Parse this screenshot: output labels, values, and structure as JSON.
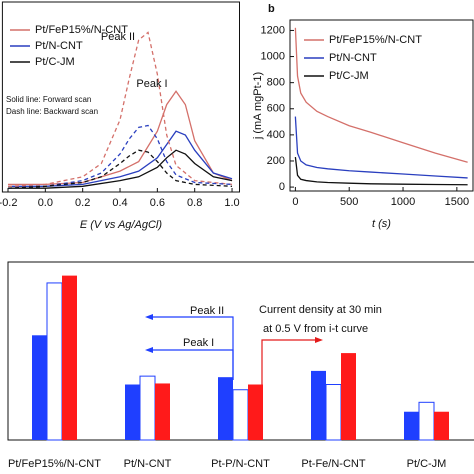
{
  "chart_data": [
    {
      "type": "line",
      "xlabel": "E (V vs Ag/AgCl)",
      "annotations": [
        "Peak II",
        "Peak I"
      ],
      "notes": [
        "Solid line: Forward scan",
        "Dash line: Backward scan"
      ],
      "xlim": [
        -0.23,
        1.04
      ],
      "ylim": [
        0,
        100
      ],
      "xticks": [
        -0.2,
        {
          "value": 0,
          "label": "0.0"
        },
        0.2,
        0.4,
        0.6,
        0.8,
        {
          "value": 1,
          "label": "1.0"
        }
      ],
      "series": [
        {
          "name": "Pt/FeP15%/N-CNT",
          "color": "#d4706a",
          "dash": false,
          "x": [
            -0.2,
            0,
            0.2,
            0.4,
            0.5,
            0.6,
            0.65,
            0.7,
            0.75,
            0.8,
            0.9,
            1.0
          ],
          "values": [
            4,
            4,
            5,
            11,
            16,
            32,
            46,
            53,
            46,
            27,
            10,
            6
          ]
        },
        {
          "name": "Pt/N-CNT",
          "color": "#2a3fbf",
          "dash": false,
          "x": [
            -0.2,
            0,
            0.2,
            0.4,
            0.5,
            0.6,
            0.65,
            0.7,
            0.75,
            0.8,
            0.9,
            1.0
          ],
          "values": [
            3,
            3,
            4,
            8,
            11,
            18,
            25,
            32,
            30,
            22,
            10,
            7
          ]
        },
        {
          "name": "Pt/C-JM",
          "color": "#111111",
          "dash": false,
          "x": [
            -0.2,
            0,
            0.2,
            0.4,
            0.5,
            0.6,
            0.65,
            0.7,
            0.75,
            0.8,
            0.9,
            1.0
          ],
          "values": [
            2,
            2,
            3,
            6,
            8,
            13,
            18,
            22,
            20,
            15,
            8,
            6
          ]
        },
        {
          "color": "#d4706a",
          "dash": true,
          "x": [
            -0.2,
            0,
            0.2,
            0.3,
            0.4,
            0.45,
            0.5,
            0.55,
            0.6,
            0.65,
            0.7,
            0.8,
            1.0
          ],
          "values": [
            3,
            4,
            8,
            15,
            38,
            60,
            80,
            84,
            62,
            30,
            14,
            6,
            4
          ]
        },
        {
          "color": "#2a3fbf",
          "dash": true,
          "x": [
            -0.2,
            0,
            0.2,
            0.3,
            0.4,
            0.45,
            0.5,
            0.55,
            0.6,
            0.65,
            0.7,
            0.8,
            1.0
          ],
          "values": [
            2,
            3,
            6,
            10,
            20,
            28,
            34,
            35,
            28,
            16,
            9,
            5,
            4
          ]
        },
        {
          "color": "#111111",
          "dash": true,
          "x": [
            -0.2,
            0,
            0.2,
            0.3,
            0.4,
            0.45,
            0.5,
            0.55,
            0.6,
            0.65,
            0.7,
            0.8,
            1.0
          ],
          "values": [
            2,
            3,
            5,
            8,
            15,
            19,
            22,
            21,
            16,
            10,
            6,
            4,
            3
          ]
        }
      ]
    },
    {
      "type": "line",
      "panel": "b",
      "xlabel": "t (s)",
      "ylabel": "j (mA mgPt-1)",
      "xlim": [
        -50,
        1650
      ],
      "ylim": [
        -30,
        1280
      ],
      "xticks": [
        0,
        500,
        1000,
        1500
      ],
      "yticks": [
        0,
        200,
        400,
        600,
        800,
        1000,
        1200
      ],
      "series": [
        {
          "name": "Pt/FeP15%/N-CNT",
          "color": "#d4706a",
          "dash": false,
          "x": [
            0,
            20,
            50,
            100,
            200,
            300,
            500,
            700,
            1000,
            1300,
            1600
          ],
          "values": [
            1220,
            850,
            720,
            650,
            580,
            540,
            470,
            420,
            340,
            260,
            190
          ]
        },
        {
          "name": "Pt/N-CNT",
          "color": "#2a3fbf",
          "dash": false,
          "x": [
            0,
            20,
            50,
            100,
            200,
            300,
            500,
            700,
            1000,
            1300,
            1600
          ],
          "values": [
            540,
            260,
            200,
            170,
            150,
            140,
            125,
            115,
            100,
            85,
            70
          ]
        },
        {
          "name": "Pt/C-JM",
          "color": "#111111",
          "dash": false,
          "x": [
            0,
            20,
            50,
            100,
            200,
            300,
            500,
            700,
            1000,
            1300,
            1600
          ],
          "values": [
            230,
            90,
            60,
            50,
            40,
            35,
            30,
            25,
            22,
            20,
            18
          ]
        }
      ]
    },
    {
      "type": "bar",
      "annotations": [
        "Peak II",
        "Peak I",
        "Current density at 30 min",
        "at 0.5 V from i-t curve"
      ],
      "categories": [
        "Pt/FeP15%/N-CNT",
        "Pt/N-CNT",
        "Pt-P/N-CNT",
        "Pt-Fe/N-CNT",
        "Pt/C-JM"
      ],
      "ylim": [
        0,
        170
      ],
      "series": [
        {
          "color": "#1f3fff",
          "values": [
            100,
            53,
            60,
            66,
            27
          ]
        },
        {
          "color": "#ffffff",
          "edgecolor": "#1f3fff",
          "values": [
            150,
            61,
            48,
            53,
            36
          ]
        },
        {
          "color": "#ff1a1a",
          "values": [
            157,
            54,
            53,
            83,
            27
          ]
        }
      ]
    }
  ]
}
